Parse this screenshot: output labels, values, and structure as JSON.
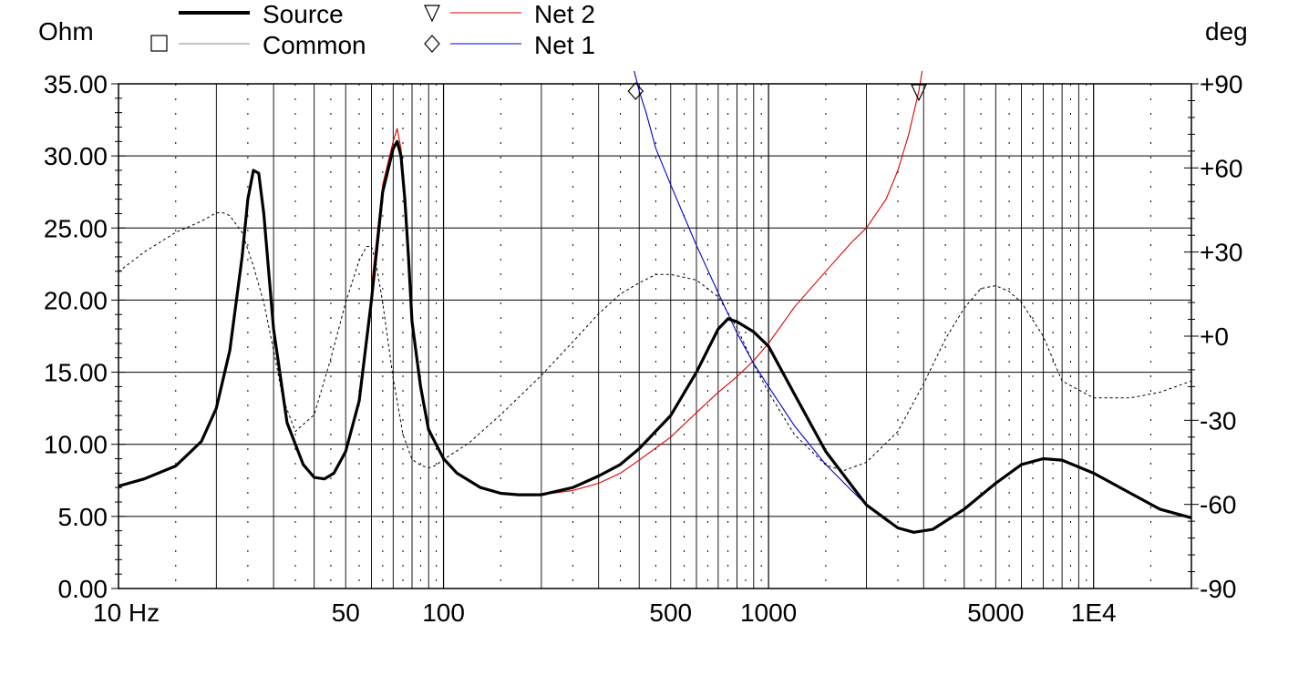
{
  "chart_data": {
    "type": "line",
    "title": "",
    "x_scale": "log",
    "xlim": [
      10,
      20000
    ],
    "x_ticks": [
      {
        "value": 10,
        "label": "10 Hz"
      },
      {
        "value": 50,
        "label": "50"
      },
      {
        "value": 100,
        "label": "100"
      },
      {
        "value": 500,
        "label": "500"
      },
      {
        "value": 1000,
        "label": "1000"
      },
      {
        "value": 5000,
        "label": "5000"
      },
      {
        "value": 10000,
        "label": "1E4"
      }
    ],
    "y_left": {
      "label": "Ohm",
      "ylim": [
        0,
        35
      ],
      "ticks": [
        0,
        5,
        10,
        15,
        20,
        25,
        30,
        35
      ],
      "tick_labels": [
        "0.00",
        "5.00",
        "10.00",
        "15.00",
        "20.00",
        "25.00",
        "30.00",
        "35.00"
      ]
    },
    "y_right": {
      "label": "deg",
      "ylim": [
        -90,
        90
      ],
      "ticks": [
        -90,
        -60,
        -30,
        0,
        30,
        60,
        90
      ],
      "tick_labels": [
        "-90",
        "-60",
        "-30",
        "+0",
        "+30",
        "+60",
        "+90"
      ]
    },
    "grid": true,
    "legend_placement": "top",
    "legend": [
      {
        "name": "Source",
        "marker": "none",
        "style": "thick-black"
      },
      {
        "name": "Common",
        "marker": "square",
        "style": "thin-gray"
      },
      {
        "name": "Net 2",
        "marker": "triangle-down",
        "style": "red"
      },
      {
        "name": "Net 1",
        "marker": "diamond",
        "style": "blue"
      }
    ],
    "series": [
      {
        "name": "Source",
        "axis": "left",
        "color": "#000000",
        "x": [
          10,
          12,
          15,
          18,
          20,
          22,
          24,
          25,
          26,
          27,
          28,
          30,
          33,
          37,
          40,
          43,
          46,
          50,
          55,
          60,
          65,
          70,
          72,
          74,
          76,
          78,
          80,
          85,
          90,
          100,
          110,
          130,
          150,
          170,
          200,
          250,
          300,
          350,
          400,
          500,
          600,
          700,
          750,
          800,
          900,
          1000,
          1200,
          1500,
          2000,
          2500,
          2800,
          3200,
          4000,
          5000,
          6000,
          7000,
          8000,
          10000,
          13000,
          16000,
          20000
        ],
        "y": [
          7.1,
          7.6,
          8.5,
          10.2,
          12.5,
          16.5,
          23.0,
          27.0,
          29.0,
          28.8,
          26.0,
          18.0,
          11.5,
          8.6,
          7.7,
          7.6,
          8.0,
          9.5,
          13.0,
          20.0,
          27.5,
          30.5,
          31.0,
          30.0,
          27.0,
          23.0,
          18.5,
          14.0,
          11.0,
          9.0,
          8.0,
          7.0,
          6.6,
          6.5,
          6.5,
          7.0,
          7.8,
          8.6,
          9.7,
          12.0,
          15.0,
          18.0,
          18.7,
          18.5,
          17.8,
          16.8,
          13.5,
          9.5,
          5.8,
          4.2,
          3.9,
          4.1,
          5.5,
          7.3,
          8.6,
          9.0,
          8.9,
          8.0,
          6.6,
          5.5,
          4.9
        ]
      },
      {
        "name": "Common",
        "axis": "right",
        "color": "#000000",
        "x": [
          10,
          12,
          15,
          18,
          20,
          21,
          22,
          24,
          26,
          28,
          30,
          32,
          35,
          40,
          45,
          50,
          55,
          58,
          60,
          62,
          65,
          70,
          75,
          80,
          85,
          90,
          95,
          100,
          120,
          150,
          200,
          250,
          300,
          350,
          400,
          450,
          500,
          600,
          700,
          800,
          900,
          1000,
          1200,
          1500,
          1700,
          2000,
          2500,
          3000,
          3500,
          4000,
          4500,
          5000,
          5500,
          6000,
          7000,
          8000,
          10000,
          13000,
          16000,
          20000
        ],
        "y": [
          23,
          30,
          37,
          41,
          44,
          44,
          43,
          37,
          25,
          12,
          -5,
          -22,
          -34,
          -28,
          -8,
          12,
          27,
          32,
          32,
          26,
          12,
          -15,
          -35,
          -44,
          -46,
          -47,
          -46,
          -44,
          -38,
          -28,
          -14,
          -2,
          8,
          15,
          19,
          22,
          22,
          20,
          14,
          3,
          -10,
          -20,
          -35,
          -46,
          -48,
          -45,
          -34,
          -17,
          -1,
          10,
          17,
          18,
          16,
          12,
          0,
          -16,
          -22,
          -22,
          -20,
          -16
        ]
      },
      {
        "name": "Net 2",
        "axis": "left",
        "color": "#dd0000",
        "x": [
          60,
          65,
          70,
          72,
          74,
          76,
          78,
          80,
          85,
          90,
          100,
          110,
          130,
          150,
          170,
          200,
          250,
          300,
          350,
          400,
          500,
          600,
          700,
          800,
          900,
          1000,
          1200,
          1500,
          1800,
          2000,
          2300,
          2500,
          2700,
          2900,
          3000
        ],
        "y": [
          21.0,
          28.0,
          31.0,
          31.9,
          30.5,
          27.5,
          23.5,
          19.0,
          14.2,
          11.2,
          9.0,
          8.0,
          7.0,
          6.6,
          6.5,
          6.5,
          6.8,
          7.3,
          8.0,
          8.9,
          10.5,
          12.2,
          13.6,
          14.7,
          15.8,
          17.0,
          19.5,
          22.0,
          24.0,
          25.0,
          27.0,
          29.0,
          31.5,
          34.5,
          36.5
        ]
      },
      {
        "name": "Net 1",
        "axis": "left",
        "color": "#0000cc",
        "x": [
          380,
          390,
          400,
          420,
          450,
          500,
          550,
          600,
          700,
          800,
          900,
          1000,
          1200,
          1500,
          1800,
          2000,
          2300,
          2500,
          2700,
          2900
        ],
        "y": [
          36.5,
          35.5,
          34.5,
          33.0,
          30.5,
          28.0,
          25.8,
          23.8,
          20.5,
          17.7,
          15.6,
          14.0,
          11.3,
          8.6,
          6.8,
          5.8,
          4.7,
          4.2,
          3.95,
          3.9
        ]
      }
    ],
    "markers": [
      {
        "series": "Net 1",
        "symbol": "diamond",
        "x": 390
      },
      {
        "series": "Net 2",
        "symbol": "triangle-down",
        "x": 2900
      }
    ]
  }
}
